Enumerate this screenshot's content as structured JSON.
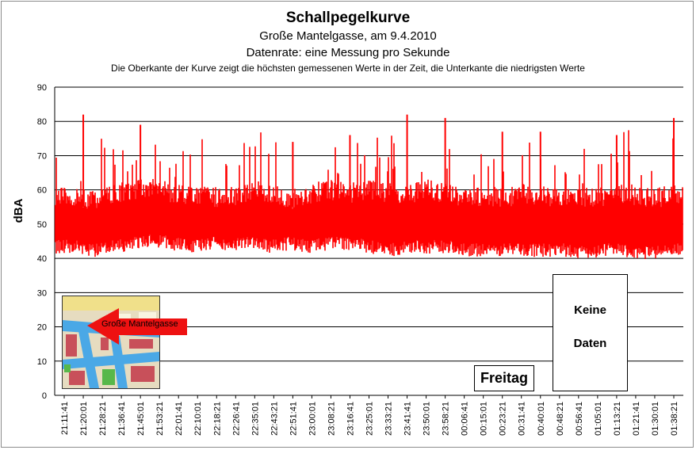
{
  "chart_data": {
    "type": "line",
    "title": "Schallpegelkurve",
    "subtitle": "Große Mantelgasse, am 9.4.2010",
    "subtitle2": "Datenrate: eine Messung pro Sekunde",
    "note": "Die Oberkante der Kurve zeigt die höchsten  gemessenen Werte  in der Zeit, die Unterkante  die niedrigsten Werte",
    "ylabel": "dBA",
    "xlabel": "",
    "ylim": [
      0,
      90
    ],
    "yticks": [
      0,
      10,
      20,
      30,
      40,
      50,
      60,
      70,
      80,
      90
    ],
    "grid": "horizontal",
    "x_tick_labels": [
      "21:11:41",
      "21:20:01",
      "21:28:21",
      "21:36:41",
      "21:45:01",
      "21:53:21",
      "22:01:41",
      "22:10:01",
      "22:18:21",
      "22:26:41",
      "22:35:01",
      "22:43:21",
      "22:51:41",
      "23:00:01",
      "23:08:21",
      "23:16:41",
      "23:25:01",
      "23:33:21",
      "23:41:41",
      "23:50:01",
      "23:58:21",
      "00:06:41",
      "00:15:01",
      "00:23:21",
      "00:31:41",
      "00:40:01",
      "00:48:21",
      "00:56:41",
      "01:05:01",
      "01:13:21",
      "01:21:41",
      "01:30:01",
      "01:38:21"
    ],
    "series": [
      {
        "color": "#ff0000",
        "envelope": {
          "x": [
            "21:11:41",
            "21:20:01",
            "21:28:21",
            "21:36:41",
            "21:45:01",
            "21:53:21",
            "22:01:41",
            "22:10:01",
            "22:18:21",
            "22:26:41",
            "22:35:01",
            "22:43:21",
            "22:51:41",
            "23:00:01",
            "23:08:21",
            "23:16:41",
            "23:25:01",
            "23:33:21",
            "23:41:41",
            "23:50:01",
            "23:58:21",
            "00:06:41",
            "00:15:01",
            "00:23:21",
            "00:31:41",
            "00:40:01",
            "00:48:21",
            "00:56:41",
            "01:05:01",
            "01:13:21",
            "01:21:41",
            "01:30:01",
            "01:38:21"
          ],
          "upper_typical": [
            58,
            58,
            57,
            59,
            60,
            61,
            59,
            58,
            58,
            58,
            60,
            59,
            57,
            59,
            60,
            59,
            60,
            59,
            59,
            60,
            59,
            58,
            58,
            58,
            59,
            58,
            58,
            58,
            58,
            59,
            58,
            58,
            59
          ],
          "lower_typical": [
            43,
            43,
            42,
            43,
            44,
            45,
            44,
            43,
            44,
            44,
            44,
            43,
            44,
            43,
            44,
            44,
            43,
            42,
            43,
            43,
            43,
            42,
            42,
            42,
            42,
            42,
            42,
            41,
            42,
            42,
            41,
            42,
            42
          ],
          "peaks": [
            {
              "x": "21:20:01",
              "y": 82
            },
            {
              "x": "21:45:01",
              "y": 79
            },
            {
              "x": "22:51:41",
              "y": 74
            },
            {
              "x": "23:16:41",
              "y": 76
            },
            {
              "x": "23:41:41",
              "y": 82
            },
            {
              "x": "23:58:21",
              "y": 81
            },
            {
              "x": "00:23:21",
              "y": 77
            },
            {
              "x": "00:40:01",
              "y": 77
            },
            {
              "x": "01:13:21",
              "y": 76
            },
            {
              "x": "01:38:21",
              "y": 81
            }
          ]
        }
      }
    ],
    "annotations": [
      "Freitag",
      "Keine",
      "Daten"
    ]
  },
  "inset": {
    "label": "Große Mantelgasse",
    "colors": {
      "arrow": "#ee1111",
      "water": "#4aa8e6",
      "block": "#c8505a",
      "green": "#58b84a"
    }
  },
  "colors": {
    "curve": "#ff0000",
    "grid": "#000000"
  }
}
